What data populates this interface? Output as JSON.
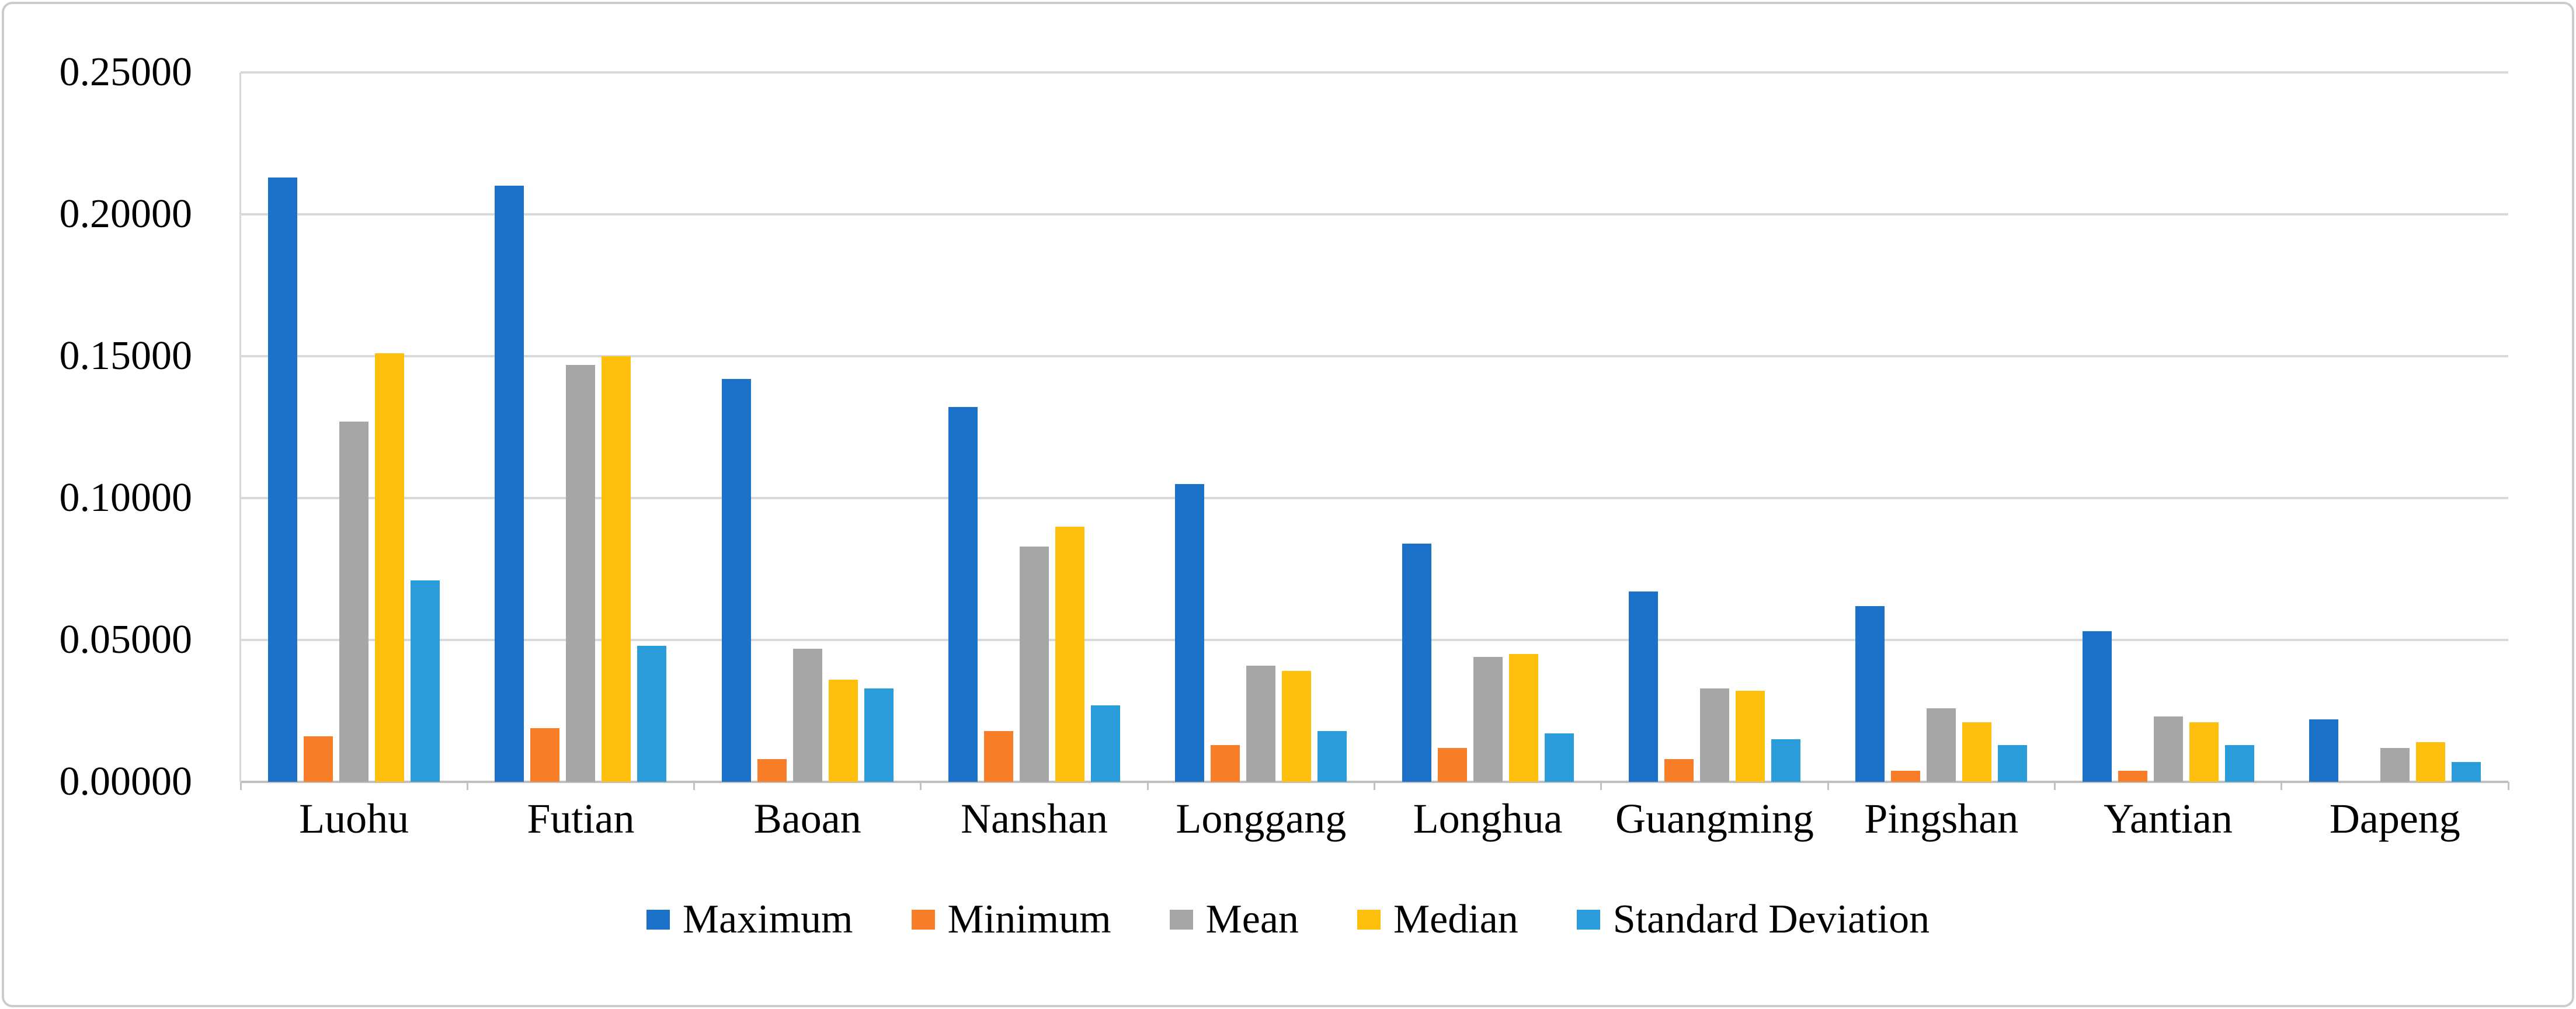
{
  "figure": {
    "background": "#FFFFFF",
    "border_color": "#C9CDD2",
    "gridline_color": "#D9D9D9",
    "axis_color": "#BFBFBF",
    "tick_color": "#C2C2C2",
    "text_color": "#000000"
  },
  "chart_data": {
    "type": "bar",
    "title": "",
    "xlabel": "",
    "ylabel": "",
    "categories": [
      "Luohu",
      "Futian",
      "Baoan",
      "Nanshan",
      "Longgang",
      "Longhua",
      "Guangming",
      "Pingshan",
      "Yantian",
      "Dapeng"
    ],
    "series": [
      {
        "name": "Maximum",
        "color": "#1C72C8",
        "values": [
          0.213,
          0.21,
          0.142,
          0.132,
          0.105,
          0.084,
          0.067,
          0.062,
          0.053,
          0.022
        ]
      },
      {
        "name": "Minimum",
        "color": "#F87D28",
        "values": [
          0.016,
          0.019,
          0.008,
          0.018,
          0.013,
          0.012,
          0.008,
          0.004,
          0.004,
          0.0
        ]
      },
      {
        "name": "Mean",
        "color": "#A6A6A6",
        "values": [
          0.127,
          0.147,
          0.047,
          0.083,
          0.041,
          0.044,
          0.033,
          0.026,
          0.023,
          0.012
        ]
      },
      {
        "name": "Median",
        "color": "#FEC00D",
        "values": [
          0.151,
          0.15,
          0.036,
          0.09,
          0.039,
          0.045,
          0.032,
          0.021,
          0.021,
          0.014
        ]
      },
      {
        "name": "Standard Deviation",
        "color": "#2A9CD9",
        "values": [
          0.071,
          0.048,
          0.033,
          0.027,
          0.018,
          0.017,
          0.015,
          0.013,
          0.013,
          0.007
        ]
      }
    ],
    "ylim": [
      0,
      0.25
    ],
    "y_ticks": [
      "0.25000",
      "0.20000",
      "0.15000",
      "0.10000",
      "0.05000",
      "0.00000"
    ],
    "y_tick_step": 0.05,
    "grid": "horizontal",
    "legend_position": "bottom"
  }
}
